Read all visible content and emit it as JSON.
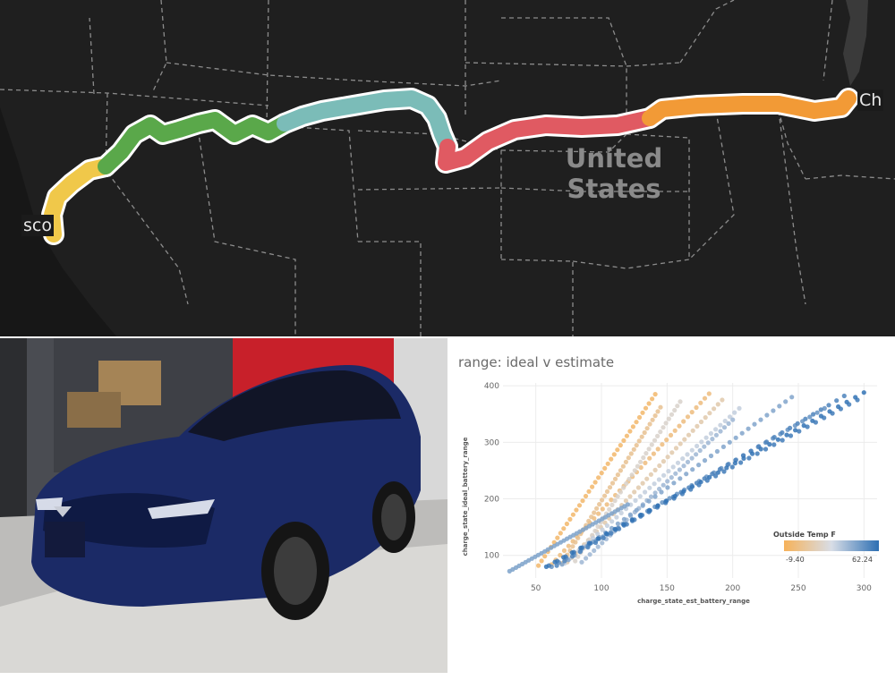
{
  "map": {
    "country_label": "United States",
    "city_left": "sco",
    "city_right": "Ch",
    "route_segment_colors": [
      "#f0c84a",
      "#5aa84a",
      "#7bbcb8",
      "#e05a62",
      "#f29a36"
    ]
  },
  "photo": {
    "subject": "car-photo"
  },
  "chart_data": {
    "type": "scatter",
    "title": "range: ideal v estimate",
    "xlabel": "charge_state_est_battery_range",
    "ylabel": "charge_state_ideal_battery_range",
    "xlim": [
      25,
      310
    ],
    "ylim": [
      60,
      405
    ],
    "xticks": [
      50,
      100,
      150,
      200,
      250,
      300
    ],
    "yticks": [
      100,
      200,
      300,
      400
    ],
    "grid": true,
    "color_legend": {
      "title": "Outside Temp F",
      "min": -9.4,
      "max": 62.24,
      "min_label": "-9.40",
      "max_label": "62.24",
      "color_min": "#f6b25a",
      "color_max": "#2d6fb3",
      "placement": "bottom-right"
    },
    "series": [
      {
        "temp": -5,
        "start": [
          52,
          82
        ],
        "end": [
          141,
          385
        ]
      },
      {
        "temp": 0,
        "start": [
          62,
          84
        ],
        "end": [
          182,
          386
        ]
      },
      {
        "temp": 5,
        "start": [
          70,
          86
        ],
        "end": [
          145,
          362
        ]
      },
      {
        "temp": 12,
        "start": [
          74,
          88
        ],
        "end": [
          192,
          375
        ]
      },
      {
        "temp": 20,
        "start": [
          80,
          90
        ],
        "end": [
          160,
          372
        ]
      },
      {
        "temp": 30,
        "start": [
          72,
          86
        ],
        "end": [
          205,
          360
        ]
      },
      {
        "temp": 38,
        "start": [
          85,
          88
        ],
        "end": [
          200,
          340
        ]
      },
      {
        "temp": 44,
        "start": [
          70,
          84
        ],
        "end": [
          245,
          380
        ]
      },
      {
        "temp": 50,
        "start": [
          62,
          80
        ],
        "end": [
          270,
          360
        ]
      },
      {
        "temp": 55,
        "start": [
          66,
          82
        ],
        "end": [
          285,
          382
        ]
      },
      {
        "temp": 58,
        "start": [
          60,
          82
        ],
        "end": [
          295,
          375
        ]
      },
      {
        "temp": 61,
        "start": [
          58,
          80
        ],
        "end": [
          300,
          388
        ]
      },
      {
        "temp": 45,
        "start": [
          30,
          72
        ],
        "end": [
          120,
          190
        ]
      }
    ]
  }
}
